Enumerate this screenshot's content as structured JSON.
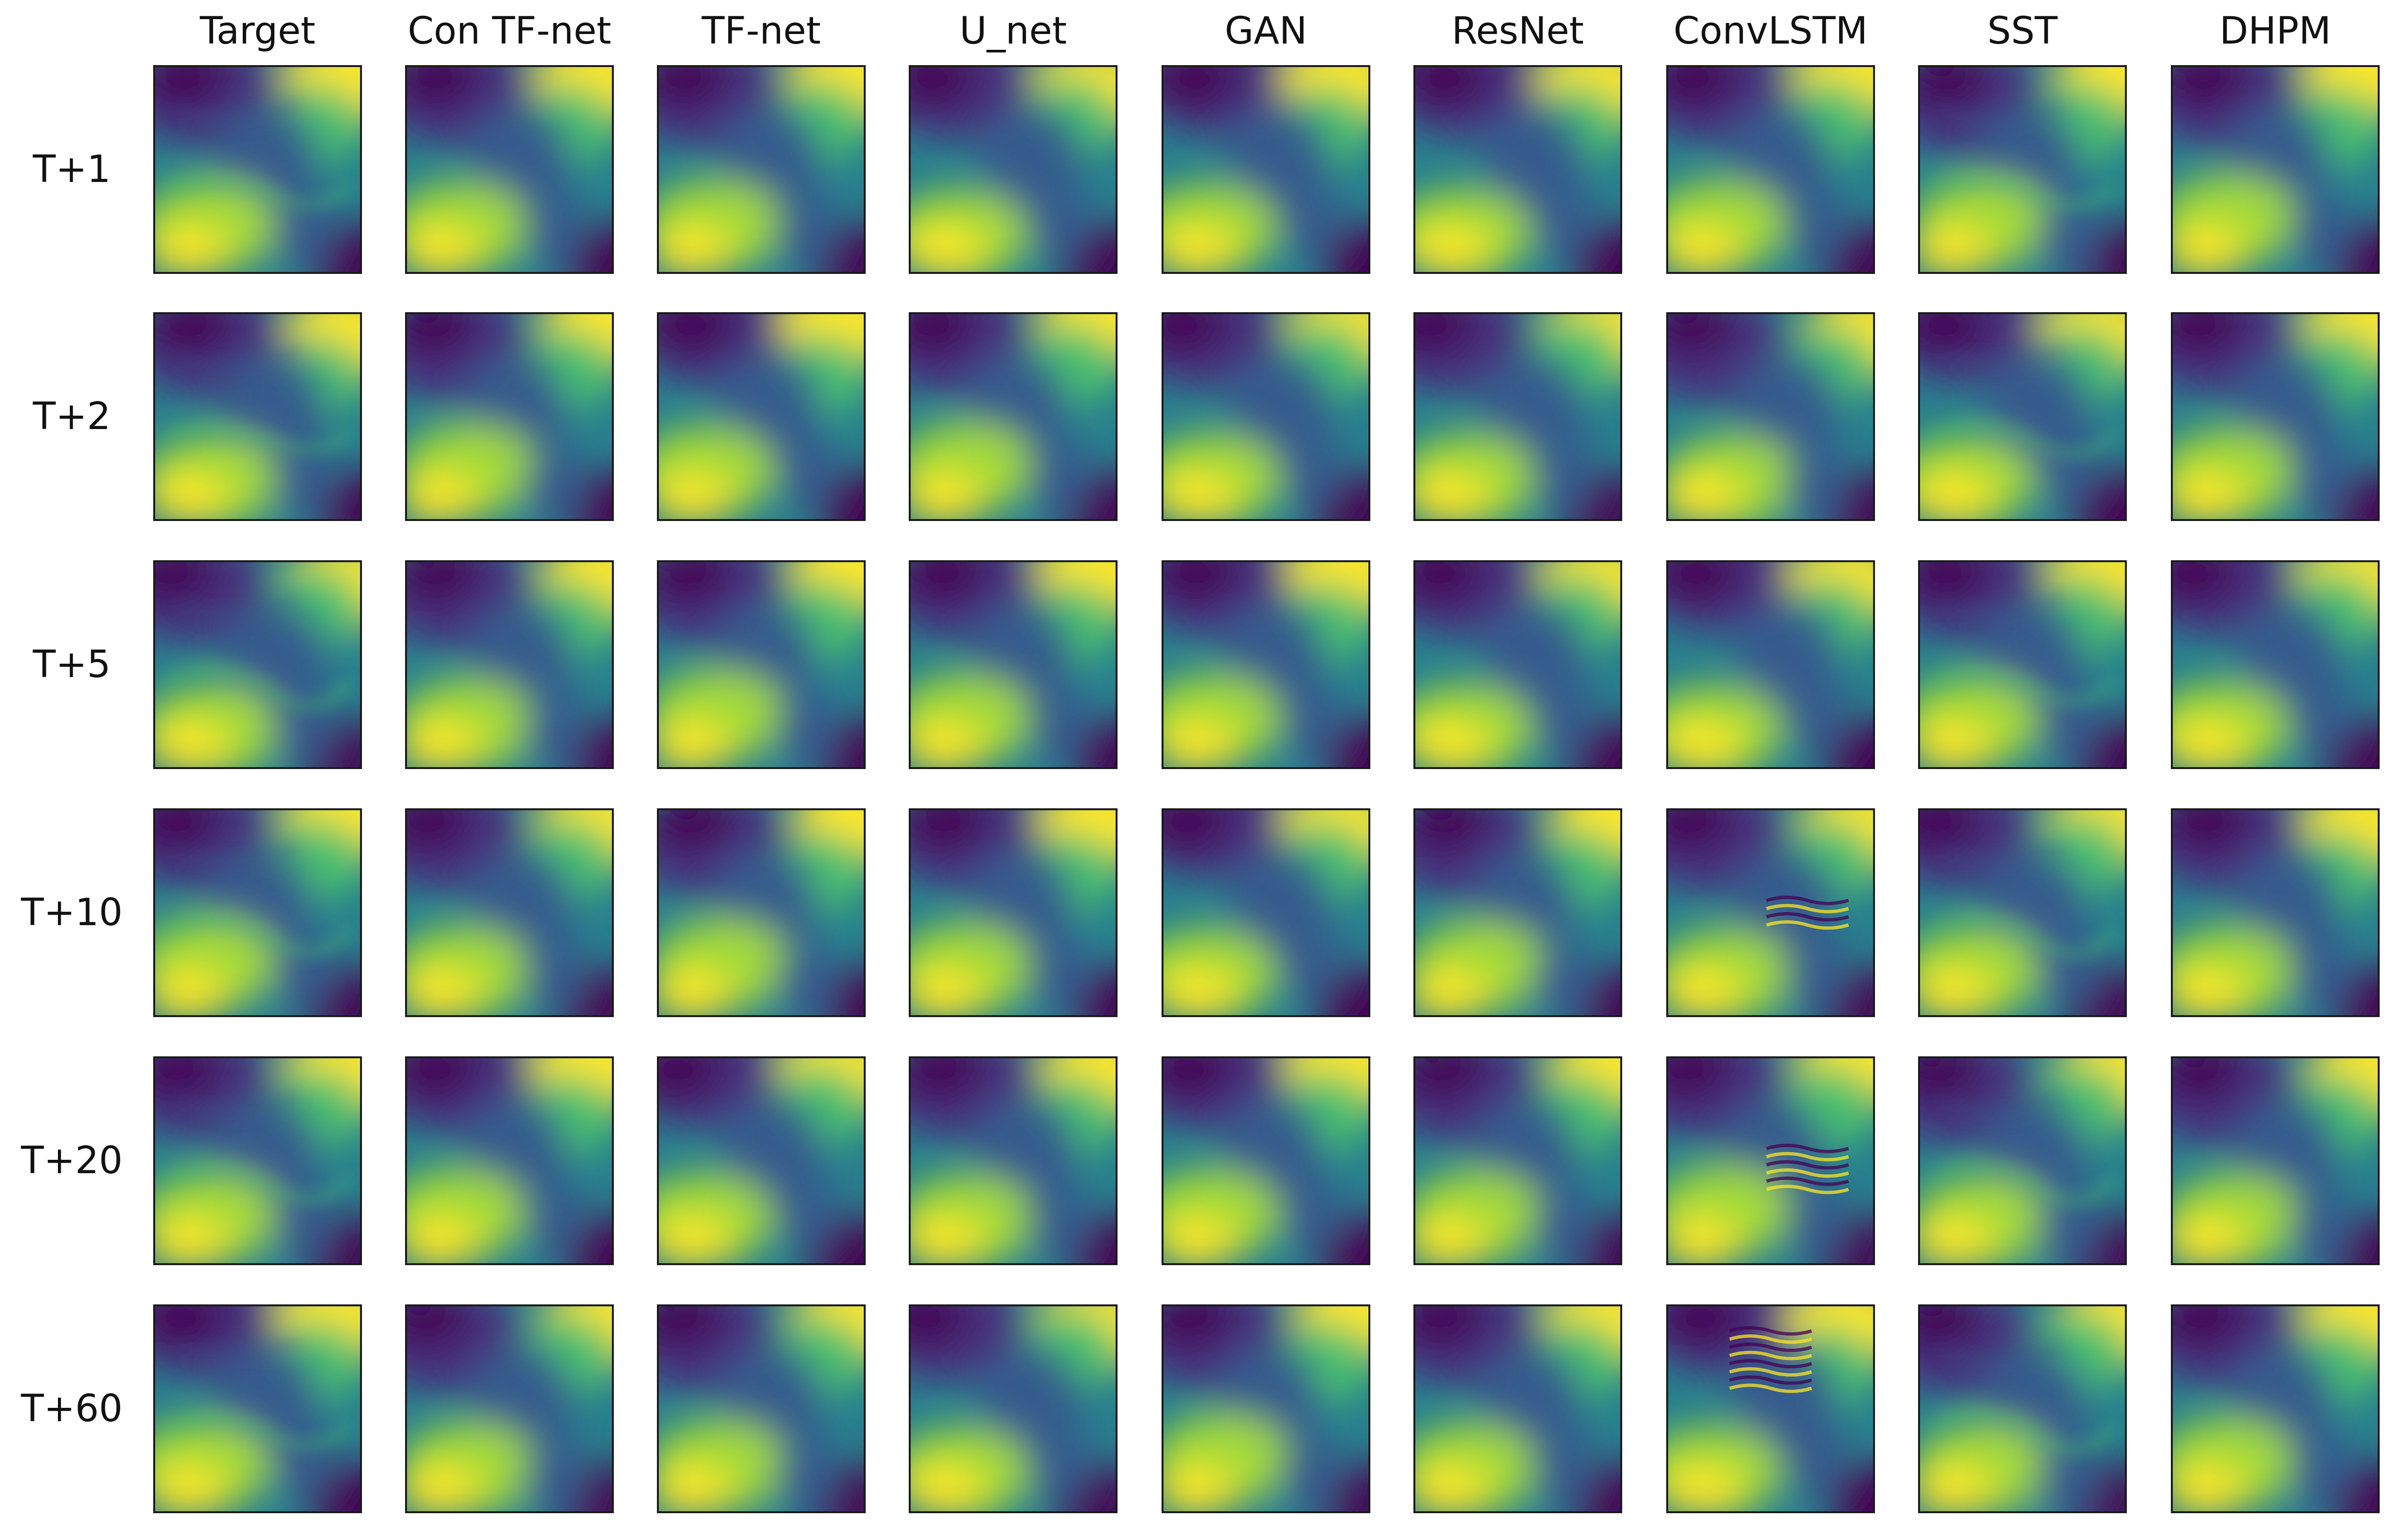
{
  "figure": {
    "columns": [
      "Target",
      "Con TF-net",
      "TF-net",
      "U_net",
      "GAN",
      "ResNet",
      "ConvLSTM",
      "SST",
      "DHPM"
    ],
    "rows": [
      "T+1",
      "T+2",
      "T+5",
      "T+10",
      "T+20",
      "T+60"
    ],
    "colormap": {
      "name": "viridis",
      "stops": [
        "#440154",
        "#46327e",
        "#365c8d",
        "#277f8e",
        "#1fa187",
        "#4ac16d",
        "#a0da39",
        "#fde725"
      ]
    }
  }
}
